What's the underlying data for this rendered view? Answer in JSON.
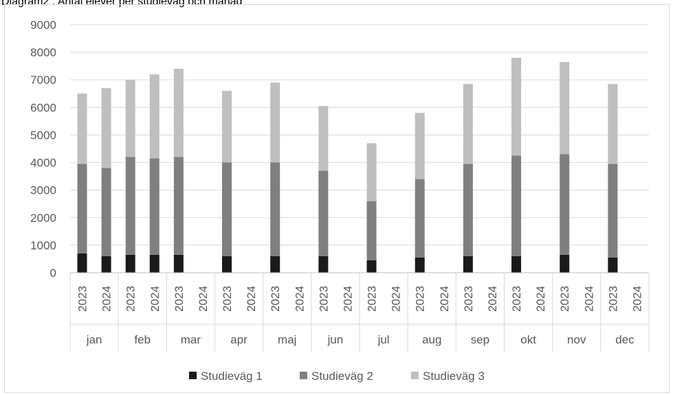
{
  "caption": "Diagram2 : Antal elever per studieväg och månad",
  "chart_data": {
    "type": "bar",
    "stacked": true,
    "title": "Diagram2 : Antal elever per studieväg och månad",
    "xlabel": "",
    "ylabel": "",
    "ylim": [
      0,
      9000
    ],
    "yticks": [
      0,
      1000,
      2000,
      3000,
      4000,
      5000,
      6000,
      7000,
      8000,
      9000
    ],
    "grid": true,
    "legend_position": "bottom",
    "months": [
      "jan",
      "feb",
      "mar",
      "apr",
      "maj",
      "jun",
      "jul",
      "aug",
      "sep",
      "okt",
      "nov",
      "dec"
    ],
    "years": [
      "2023",
      "2024"
    ],
    "series": [
      {
        "name": "Studieväg 1",
        "color": "#1a1a1a",
        "values": [
          [
            700,
            600
          ],
          [
            650,
            650
          ],
          [
            650,
            null
          ],
          [
            600,
            null
          ],
          [
            600,
            null
          ],
          [
            600,
            null
          ],
          [
            450,
            null
          ],
          [
            550,
            null
          ],
          [
            600,
            null
          ],
          [
            600,
            null
          ],
          [
            650,
            null
          ],
          [
            550,
            null
          ]
        ]
      },
      {
        "name": "Studieväg 2",
        "color": "#7f7f7f",
        "values": [
          [
            3250,
            3200
          ],
          [
            3550,
            3500
          ],
          [
            3550,
            null
          ],
          [
            3400,
            null
          ],
          [
            3400,
            null
          ],
          [
            3100,
            null
          ],
          [
            2150,
            null
          ],
          [
            2850,
            null
          ],
          [
            3350,
            null
          ],
          [
            3650,
            null
          ],
          [
            3650,
            null
          ],
          [
            3400,
            null
          ]
        ]
      },
      {
        "name": "Studieväg 3",
        "color": "#bfbfbf",
        "values": [
          [
            2550,
            2900
          ],
          [
            2800,
            3050
          ],
          [
            3200,
            null
          ],
          [
            2600,
            null
          ],
          [
            2900,
            null
          ],
          [
            2350,
            null
          ],
          [
            2100,
            null
          ],
          [
            2400,
            null
          ],
          [
            2900,
            null
          ],
          [
            3550,
            null
          ],
          [
            3350,
            null
          ],
          [
            2900,
            null
          ]
        ]
      }
    ]
  }
}
